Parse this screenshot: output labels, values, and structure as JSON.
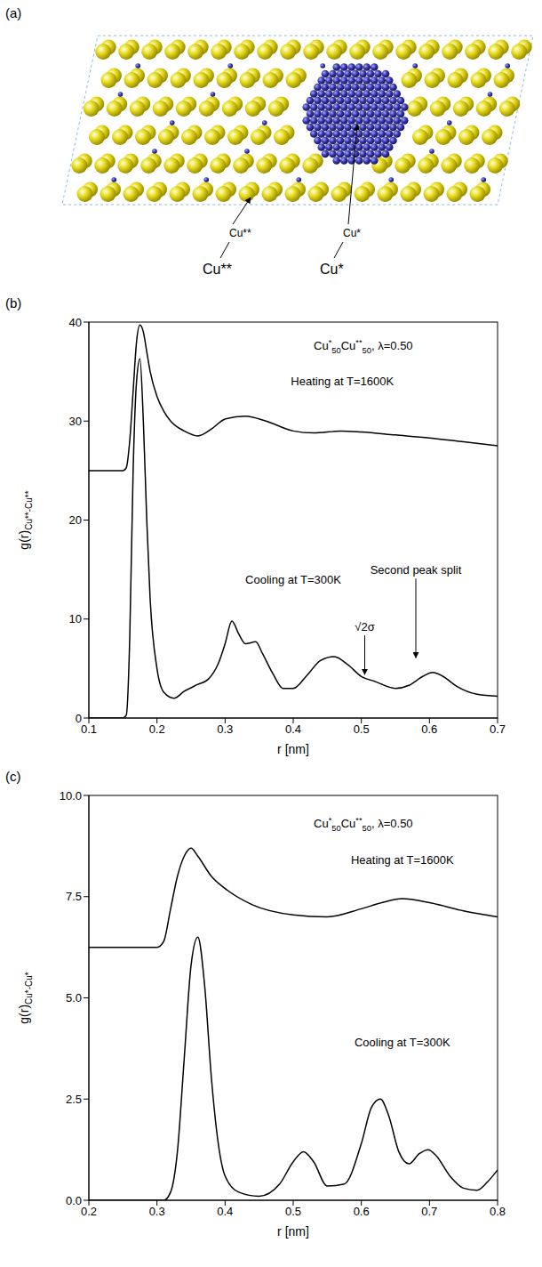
{
  "panel_a": {
    "label": "(a)",
    "type": "diagram",
    "atoms": [
      {
        "labels": [
          "Cu**",
          "Cu**"
        ],
        "color": "#e8dc1e"
      },
      {
        "labels": [
          "Cu*",
          "Cu*"
        ],
        "color": "#3a3ab0"
      }
    ],
    "frame_color": "#8fb8e8"
  },
  "chart_data": [
    {
      "panel": "(b)",
      "type": "line",
      "title": "Cu*50Cu**50, λ=0.50",
      "xlabel": "r [nm]",
      "ylabel": "g(r)",
      "ylabel_sub": "Cu**-Cu**",
      "xlim": [
        0.1,
        0.7
      ],
      "xticks": [
        0.1,
        0.2,
        0.3,
        0.4,
        0.5,
        0.6,
        0.7
      ],
      "ylim": [
        0,
        40
      ],
      "yticks": [
        0,
        10,
        20,
        30,
        40
      ],
      "grid": false,
      "series": [
        {
          "name": "Heating at T=1600K",
          "color": "#000000",
          "x": [
            0.1,
            0.15,
            0.155,
            0.16,
            0.165,
            0.17,
            0.175,
            0.18,
            0.185,
            0.19,
            0.2,
            0.21,
            0.22,
            0.24,
            0.26,
            0.28,
            0.3,
            0.33,
            0.36,
            0.4,
            0.43,
            0.47,
            0.5,
            0.55,
            0.6,
            0.65,
            0.7
          ],
          "values": [
            25,
            25,
            25.3,
            28,
            33,
            38,
            39.7,
            39,
            37,
            35,
            32.5,
            31,
            30,
            29,
            28.5,
            29.2,
            30.2,
            30.5,
            30,
            29,
            28.8,
            29,
            28.9,
            28.6,
            28.3,
            27.9,
            27.5
          ]
        },
        {
          "name": "Cooling at T=300K",
          "color": "#000000",
          "x": [
            0.1,
            0.15,
            0.155,
            0.16,
            0.165,
            0.17,
            0.175,
            0.18,
            0.185,
            0.19,
            0.2,
            0.21,
            0.225,
            0.24,
            0.26,
            0.275,
            0.29,
            0.3,
            0.31,
            0.32,
            0.33,
            0.345,
            0.355,
            0.37,
            0.385,
            0.4,
            0.42,
            0.44,
            0.46,
            0.48,
            0.5,
            0.52,
            0.55,
            0.57,
            0.59,
            0.605,
            0.62,
            0.64,
            0.67,
            0.7
          ],
          "values": [
            0,
            0,
            0.3,
            8,
            25,
            34,
            36.3,
            30,
            20,
            12,
            5,
            2.6,
            2,
            2.7,
            3.4,
            3.9,
            5.5,
            7.5,
            9.8,
            8.5,
            7.5,
            7.7,
            6.5,
            4.5,
            3,
            3,
            4.3,
            5.8,
            6.2,
            5.4,
            4.2,
            3.7,
            3,
            3.3,
            4.2,
            4.6,
            4.2,
            3.2,
            2.4,
            2.2
          ]
        }
      ],
      "annotations": [
        {
          "text": "√2σ",
          "x": 0.505,
          "y": 4.3
        },
        {
          "text": "Second peak split",
          "x": 0.58,
          "y": 6
        }
      ]
    },
    {
      "panel": "(c)",
      "type": "line",
      "title": "Cu*50Cu**50, λ=0.50",
      "xlabel": "r [nm]",
      "ylabel": "g(r)",
      "ylabel_sub": "Cu*-Cu*",
      "xlim": [
        0.2,
        0.8
      ],
      "xticks": [
        0.2,
        0.3,
        0.4,
        0.5,
        0.6,
        0.7,
        0.8
      ],
      "ylim": [
        0,
        10
      ],
      "yticks": [
        {
          "value": 0,
          "label": "0.0"
        },
        2.5,
        {
          "value": 5,
          "label": "5.0"
        },
        7.5,
        {
          "value": 10,
          "label": "10.0"
        }
      ],
      "grid": false,
      "series": [
        {
          "name": "Heating at T=1600K",
          "color": "#000000",
          "x": [
            0.2,
            0.3,
            0.31,
            0.32,
            0.33,
            0.34,
            0.35,
            0.36,
            0.38,
            0.4,
            0.44,
            0.5,
            0.55,
            0.6,
            0.63,
            0.66,
            0.7,
            0.75,
            0.8
          ],
          "values": [
            6.25,
            6.25,
            6.4,
            7.2,
            8,
            8.5,
            8.7,
            8.5,
            8,
            7.7,
            7.3,
            7.05,
            7,
            7.2,
            7.35,
            7.45,
            7.35,
            7.15,
            7
          ]
        },
        {
          "name": "Cooling at T=300K",
          "color": "#000000",
          "x": [
            0.2,
            0.31,
            0.32,
            0.33,
            0.34,
            0.35,
            0.36,
            0.37,
            0.38,
            0.39,
            0.4,
            0.42,
            0.45,
            0.48,
            0.5,
            0.515,
            0.53,
            0.55,
            0.575,
            0.6,
            0.615,
            0.628,
            0.64,
            0.655,
            0.67,
            0.685,
            0.698,
            0.71,
            0.73,
            0.75,
            0.77,
            0.785,
            0.8
          ],
          "values": [
            0,
            0,
            0.2,
            1.2,
            3.5,
            5.8,
            6.5,
            5.3,
            3,
            1.4,
            0.6,
            0.2,
            0.1,
            0.4,
            0.95,
            1.2,
            0.95,
            0.35,
            0.4,
            1.4,
            2.3,
            2.5,
            2.1,
            1.2,
            0.9,
            1.15,
            1.25,
            1.1,
            0.6,
            0.3,
            0.25,
            0.45,
            0.75
          ]
        }
      ]
    }
  ]
}
